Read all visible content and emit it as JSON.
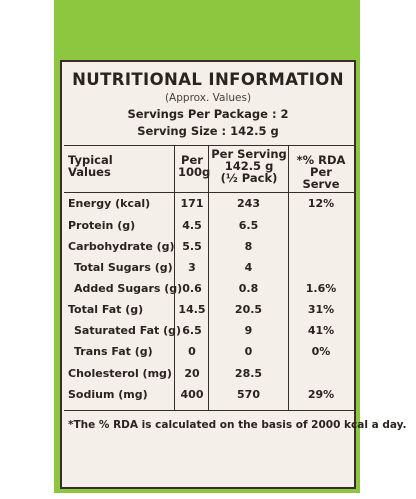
{
  "colors": {
    "frame_green": "#8dc63f",
    "panel_bg": "#f4efe8",
    "ink": "#2a2320"
  },
  "label": {
    "title": "NUTRITIONAL INFORMATION",
    "approx": "(Approx. Values)",
    "servings_per_package": "Servings Per Package : 2",
    "serving_size": "Serving Size : 142.5 g"
  },
  "table": {
    "headers": {
      "col1": [
        "Typical",
        "Values"
      ],
      "col2": [
        "Per",
        "100g"
      ],
      "col3": [
        "Per Serving",
        "142.5 g",
        "(½ Pack)"
      ],
      "col4": [
        "*% RDA",
        "Per Serve"
      ]
    },
    "rows": [
      {
        "name": "Energy (kcal)",
        "per100": "171",
        "perServing": "243",
        "rda": "12%"
      },
      {
        "name": "Protein (g)",
        "per100": "4.5",
        "perServing": "6.5",
        "rda": ""
      },
      {
        "name": "Carbohydrate (g)",
        "per100": "5.5",
        "perServing": "8",
        "rda": ""
      },
      {
        "name": "Total Sugars (g)",
        "per100": "3",
        "perServing": "4",
        "rda": ""
      },
      {
        "name": "Added Sugars (g)",
        "per100": "0.6",
        "perServing": "0.8",
        "rda": "1.6%"
      },
      {
        "name": "Total Fat (g)",
        "per100": "14.5",
        "perServing": "20.5",
        "rda": "31%"
      },
      {
        "name": "Saturated Fat (g)",
        "per100": "6.5",
        "perServing": "9",
        "rda": "41%"
      },
      {
        "name": "Trans Fat (g)",
        "per100": "0",
        "perServing": "0",
        "rda": "0%"
      },
      {
        "name": "Cholesterol (mg)",
        "per100": "20",
        "perServing": "28.5",
        "rda": ""
      },
      {
        "name": "Sodium (mg)",
        "per100": "400",
        "perServing": "570",
        "rda": "29%"
      }
    ]
  },
  "footnote": "*The % RDA is calculated on the basis of 2000 kcal a day."
}
